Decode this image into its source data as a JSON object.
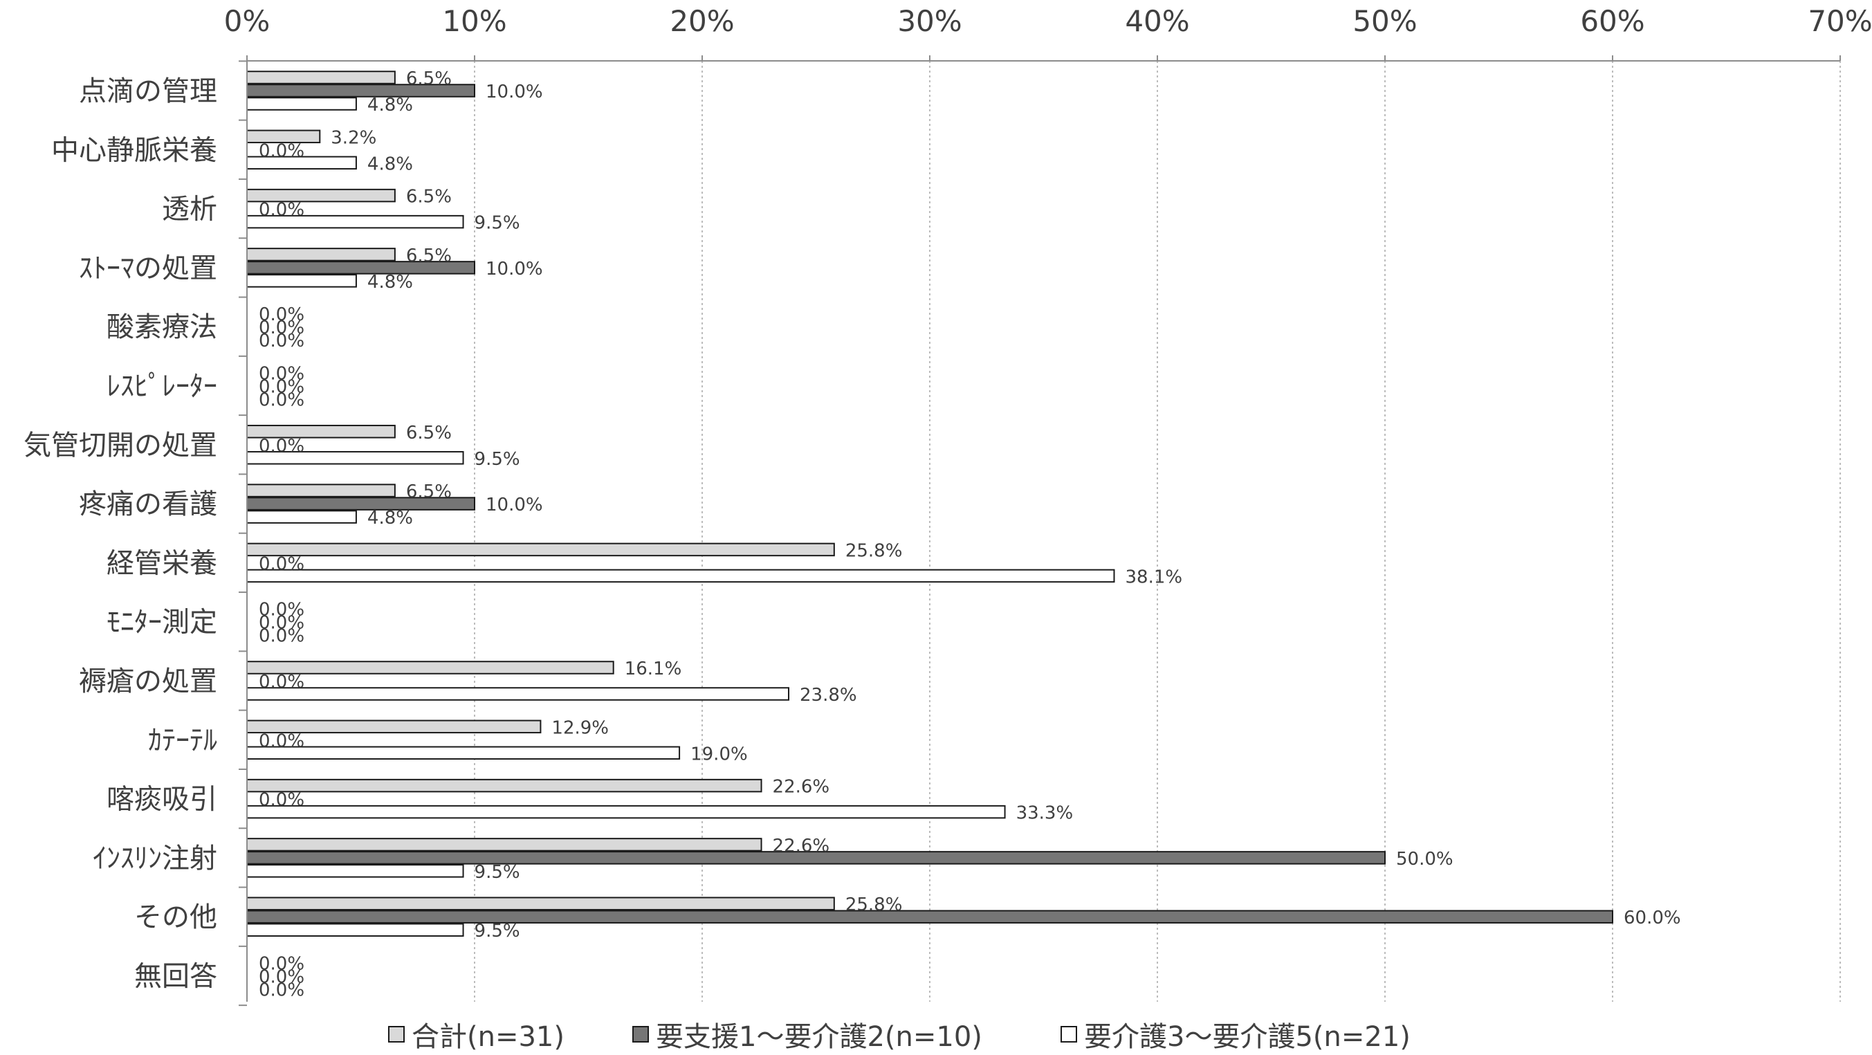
{
  "chart_data": {
    "type": "bar",
    "orientation": "horizontal",
    "categories": [
      "点滴の管理",
      "中心静脈栄養",
      "透析",
      "ｽﾄｰﾏの処置",
      "酸素療法",
      "ﾚｽﾋﾟﾚｰﾀｰ",
      "気管切開の処置",
      "疼痛の看護",
      "経管栄養",
      "ﾓﾆﾀｰ測定",
      "褥瘡の処置",
      "ｶﾃｰﾃﾙ",
      "喀痰吸引",
      "ｲﾝｽﾘﾝ注射",
      "その他",
      "無回答"
    ],
    "series": [
      {
        "name": "合計(n=31)",
        "color": "#d9d9d9",
        "values": [
          6.5,
          3.2,
          6.5,
          6.5,
          0.0,
          0.0,
          6.5,
          6.5,
          25.8,
          0.0,
          16.1,
          12.9,
          22.6,
          22.6,
          25.8,
          0.0
        ]
      },
      {
        "name": "要支援1～要介護2(n=10)",
        "color": "#767676",
        "values": [
          10.0,
          0.0,
          0.0,
          10.0,
          0.0,
          0.0,
          0.0,
          10.0,
          0.0,
          0.0,
          0.0,
          0.0,
          0.0,
          50.0,
          60.0,
          0.0
        ]
      },
      {
        "name": "要介護3～要介護5(n=21)",
        "color": "#ffffff",
        "values": [
          4.8,
          4.8,
          9.5,
          4.8,
          0.0,
          0.0,
          9.5,
          4.8,
          38.1,
          0.0,
          23.8,
          19.0,
          33.3,
          9.5,
          9.5,
          0.0
        ]
      }
    ],
    "xlim": [
      0,
      70
    ],
    "xticks": [
      "0%",
      "10%",
      "20%",
      "30%",
      "40%",
      "50%",
      "60%",
      "70%"
    ],
    "xaxis_position": "top",
    "grid": true,
    "legend": "bottom",
    "value_suffix": "%",
    "title": "",
    "xlabel": "",
    "ylabel": ""
  }
}
